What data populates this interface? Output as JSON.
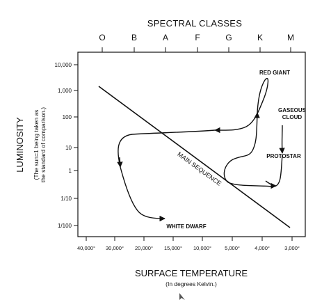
{
  "diagram": {
    "top_title": "SPECTRAL CLASSES",
    "spectral_classes": [
      "O",
      "B",
      "A",
      "F",
      "G",
      "K",
      "M"
    ],
    "y_ticks": [
      "10,000",
      "1,000",
      "100",
      "10",
      "1",
      "1/10",
      "1/100"
    ],
    "x_ticks": [
      "40,000°",
      "30,000°",
      "20,000°",
      "15,000°",
      "10,000°",
      "5,000°",
      "4,000°",
      "3,000°"
    ],
    "y_title": "LUMINOSITY",
    "y_subtitle_line1": "(The sun=1 being taken as",
    "y_subtitle_line2": "the standard of comparison.)",
    "x_title": "SURFACE TEMPERATURE",
    "x_subtitle": "(In degrees Kelvin.)",
    "labels": {
      "red_giant": "RED GIANT",
      "gaseous_line1": "GASEOUS",
      "gaseous_line2": "CLOUD",
      "protostar": "PROTOSTAR",
      "main_sequence": "MAIN SEQUENCE",
      "white_dwarf": "WHITE DWARF"
    },
    "colors": {
      "ink": "#111111",
      "background": "#ffffff"
    }
  }
}
